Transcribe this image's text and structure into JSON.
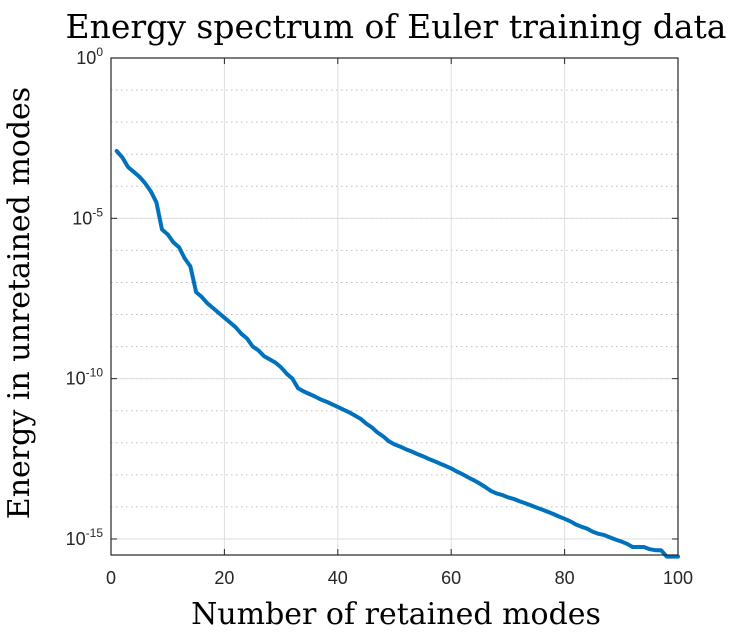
{
  "chart_data": {
    "type": "line",
    "title": "Energy spectrum of Euler training data",
    "xlabel": "Number of retained modes",
    "ylabel": "Energy in unretained modes",
    "xlim": [
      0,
      100
    ],
    "ylim_log10": [
      -15.5,
      0
    ],
    "y_scale": "log",
    "grid": true,
    "minor_grid": true,
    "x_ticks": [
      0,
      20,
      40,
      60,
      80,
      100
    ],
    "y_ticks": [
      {
        "base": "10",
        "exp": "0",
        "log10": 0
      },
      {
        "base": "10",
        "exp": "-5",
        "log10": -5
      },
      {
        "base": "10",
        "exp": "-10",
        "log10": -10
      },
      {
        "base": "10",
        "exp": "-15",
        "log10": -15
      }
    ],
    "color": "#0072BD",
    "series": [
      {
        "name": "energy",
        "x": [
          1,
          2,
          3,
          4,
          5,
          6,
          7,
          8,
          9,
          10,
          11,
          12,
          13,
          14,
          15,
          16,
          17,
          18,
          19,
          20,
          21,
          22,
          23,
          24,
          25,
          26,
          27,
          28,
          29,
          30,
          31,
          32,
          33,
          34,
          35,
          36,
          37,
          38,
          39,
          40,
          41,
          42,
          43,
          44,
          45,
          46,
          47,
          48,
          49,
          50,
          51,
          52,
          53,
          54,
          55,
          56,
          57,
          58,
          59,
          60,
          61,
          62,
          63,
          64,
          65,
          66,
          67,
          68,
          69,
          70,
          71,
          72,
          73,
          74,
          75,
          76,
          77,
          78,
          79,
          80,
          81,
          82,
          83,
          84,
          85,
          86,
          87,
          88,
          89,
          90,
          91,
          92,
          93,
          94,
          95,
          96,
          97,
          98,
          99,
          100
        ],
        "log10y": [
          -2.9,
          -3.1,
          -3.4,
          -3.55,
          -3.7,
          -3.9,
          -4.15,
          -4.5,
          -5.35,
          -5.5,
          -5.75,
          -5.9,
          -6.25,
          -6.5,
          -7.3,
          -7.45,
          -7.65,
          -7.8,
          -7.95,
          -8.1,
          -8.25,
          -8.4,
          -8.6,
          -8.75,
          -9.0,
          -9.12,
          -9.3,
          -9.4,
          -9.5,
          -9.65,
          -9.85,
          -10.0,
          -10.3,
          -10.4,
          -10.48,
          -10.56,
          -10.65,
          -10.72,
          -10.8,
          -10.88,
          -10.97,
          -11.05,
          -11.15,
          -11.25,
          -11.4,
          -11.52,
          -11.68,
          -11.8,
          -11.95,
          -12.05,
          -12.12,
          -12.2,
          -12.27,
          -12.35,
          -12.42,
          -12.5,
          -12.57,
          -12.65,
          -12.72,
          -12.8,
          -12.9,
          -12.98,
          -13.08,
          -13.17,
          -13.27,
          -13.38,
          -13.5,
          -13.58,
          -13.63,
          -13.7,
          -13.75,
          -13.82,
          -13.88,
          -13.95,
          -14.02,
          -14.08,
          -14.15,
          -14.22,
          -14.3,
          -14.37,
          -14.45,
          -14.55,
          -14.62,
          -14.68,
          -14.78,
          -14.84,
          -14.88,
          -14.95,
          -15.02,
          -15.08,
          -15.15,
          -15.25,
          -15.25,
          -15.25,
          -15.32,
          -15.35,
          -15.35,
          -15.55,
          -15.55,
          -15.55
        ]
      }
    ]
  }
}
